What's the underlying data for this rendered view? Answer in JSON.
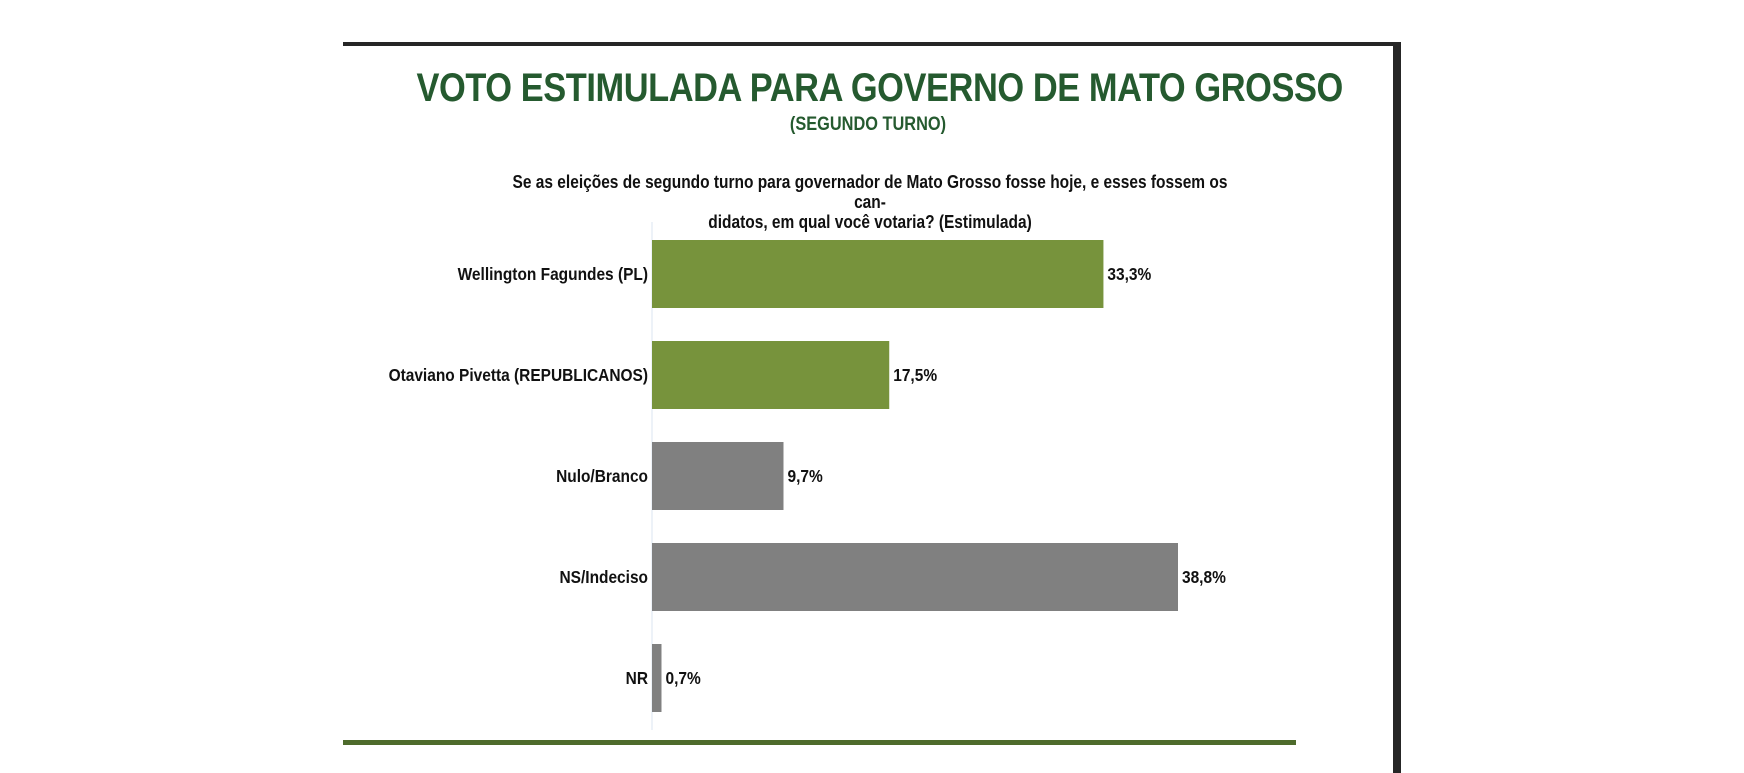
{
  "chart_data": {
    "type": "bar",
    "orientation": "horizontal",
    "title": "VOTO ESTIMULADA PARA GOVERNO DE MATO GROSSO",
    "subtitle": "(SEGUNDO TURNO)",
    "question": "Se as eleições de segundo turno para governador de Mato Grosso fosse hoje, e esses fossem os candidatos, em qual você votaria? (Estimulada)",
    "question_lines": [
      "Se as eleições de segundo turno para governador de Mato Grosso fosse hoje, e esses fossem os can-",
      "didatos, em qual você votaria? (Estimulada)"
    ],
    "categories": [
      "Wellington Fagundes (PL)",
      "Otaviano Pivetta (REPUBLICANOS)",
      "Nulo/Branco",
      "NS/Indeciso",
      "NR"
    ],
    "values": [
      33.3,
      17.5,
      9.7,
      38.8,
      0.7
    ],
    "value_labels": [
      "33,3%",
      "17,5%",
      "9,7%",
      "38,8%",
      "0,7%"
    ],
    "bar_colors": [
      "#77933c",
      "#77933c",
      "#808080",
      "#808080",
      "#808080"
    ],
    "xlabel": "",
    "ylabel": "",
    "xlim": [
      0,
      45
    ],
    "grid": false,
    "legend": "none"
  },
  "colors": {
    "title": "#255a2f",
    "candidate_bar": "#77933c",
    "other_bar": "#808080",
    "frame": "#262626",
    "bottom_rule": "#4e6b2c"
  }
}
